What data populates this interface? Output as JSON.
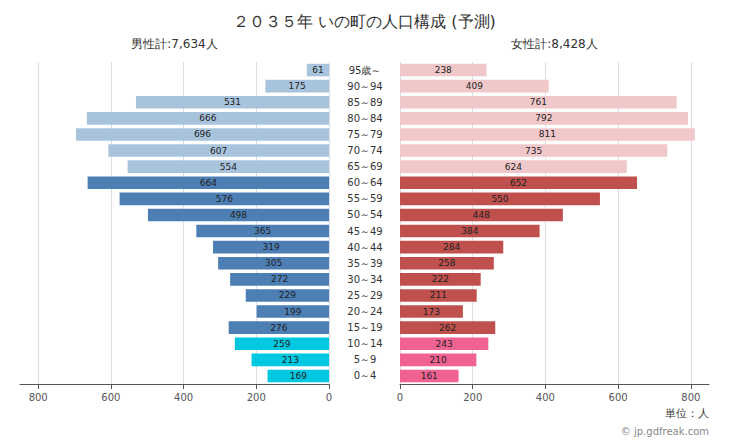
{
  "chart_data": {
    "type": "bar",
    "orientation": "horizontal",
    "title": "２０３５年 いの町の人口構成 (予測)",
    "annotations": [
      "男性計:7,634人",
      "女性計:8,428人",
      "単位：人",
      "© jp.gdfreak.com"
    ],
    "categories": [
      "95歳～",
      "90～94",
      "85～89",
      "80～84",
      "75～79",
      "70～74",
      "65～69",
      "60～64",
      "55～59",
      "50～54",
      "45～49",
      "40～44",
      "35～39",
      "30～34",
      "25～29",
      "20～24",
      "15～19",
      "10～14",
      "5～9",
      "0～4"
    ],
    "series": [
      {
        "values": [
          61,
          175,
          531,
          666,
          696,
          607,
          554,
          664,
          576,
          498,
          365,
          319,
          305,
          272,
          229,
          199,
          276,
          259,
          213,
          169
        ],
        "colors": [
          "#a8c4dc",
          "#a8c4dc",
          "#a8c4dc",
          "#a8c4dc",
          "#a8c4dc",
          "#a8c4dc",
          "#a8c4dc",
          "#4d7fb5",
          "#4d7fb5",
          "#4d7fb5",
          "#4d7fb5",
          "#4d7fb5",
          "#4d7fb5",
          "#4d7fb5",
          "#4d7fb5",
          "#4d7fb5",
          "#4d7fb5",
          "#00c8e0",
          "#00c8e0",
          "#00c8e0"
        ]
      },
      {
        "values": [
          238,
          409,
          761,
          792,
          811,
          735,
          624,
          652,
          550,
          448,
          384,
          284,
          258,
          222,
          211,
          173,
          262,
          243,
          210,
          161
        ],
        "colors": [
          "#f0c8ca",
          "#f0c8ca",
          "#f0c8ca",
          "#f0c8ca",
          "#f0c8ca",
          "#f0c8ca",
          "#f0c8ca",
          "#c0504d",
          "#c0504d",
          "#c0504d",
          "#c0504d",
          "#c0504d",
          "#c0504d",
          "#c0504d",
          "#c0504d",
          "#c0504d",
          "#c0504d",
          "#f06292",
          "#f06292",
          "#f06292"
        ]
      }
    ],
    "xlim": [
      0,
      850
    ],
    "xticks": [
      0,
      200,
      400,
      600,
      800
    ],
    "grid": true,
    "data_labels": true
  }
}
